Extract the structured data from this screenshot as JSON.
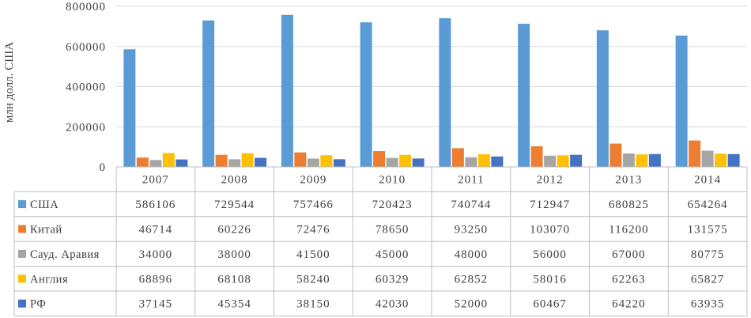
{
  "chart_data": {
    "type": "bar",
    "ylabel": "млн долл. США",
    "ylim": [
      0,
      800000
    ],
    "yticks": [
      0,
      200000,
      400000,
      600000,
      800000
    ],
    "grid": true,
    "legend": "data-table",
    "categories": [
      "2007",
      "2008",
      "2009",
      "2010",
      "2011",
      "2012",
      "2013",
      "2014"
    ],
    "series": [
      {
        "name": "США",
        "color": "#5B9BD5",
        "values": [
          586106,
          729544,
          757466,
          720423,
          740744,
          712947,
          680825,
          654264
        ]
      },
      {
        "name": "Китай",
        "color": "#ED7D31",
        "values": [
          46714,
          60226,
          72476,
          78650,
          93250,
          103070,
          116200,
          131575
        ]
      },
      {
        "name": "Сауд. Аравия",
        "color": "#A5A5A5",
        "values": [
          34000,
          38000,
          41500,
          45000,
          48000,
          56000,
          67000,
          80775
        ]
      },
      {
        "name": "Англия",
        "color": "#FFC000",
        "values": [
          68896,
          68108,
          58240,
          60329,
          62852,
          58016,
          62263,
          65827
        ]
      },
      {
        "name": "РФ",
        "color": "#4472C4",
        "values": [
          37145,
          45354,
          38150,
          42030,
          52000,
          60467,
          64220,
          63935
        ]
      }
    ]
  }
}
